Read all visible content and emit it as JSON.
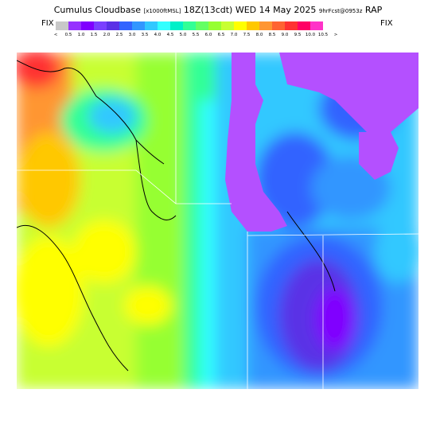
{
  "header": {
    "title": "Cumulus Cloudbase",
    "units": "[x1000ftMSL]",
    "valid": "18Z(13cdt) WED 14 May 2025",
    "run": "9hrFcst@0953z",
    "model": "RAP"
  },
  "legend": {
    "fix_left": "FIX",
    "fix_right": "FIX",
    "colors": [
      "#c8c8c8",
      "#9632ff",
      "#8000ff",
      "#7a40ff",
      "#5a32e6",
      "#3264ff",
      "#3296ff",
      "#32c8ff",
      "#32ffff",
      "#00f0c8",
      "#32ff96",
      "#64ff64",
      "#96ff32",
      "#c8ff32",
      "#ffff00",
      "#ffc800",
      "#ff9632",
      "#ff6432",
      "#ff3232",
      "#ff0064",
      "#ff32c8"
    ],
    "labels": [
      "<",
      "0.5",
      "1.0",
      "1.5",
      "2.0",
      "2.5",
      "3.0",
      "3.5",
      "4.0",
      "4.5",
      "5.0",
      "5.5",
      "6.0",
      "6.5",
      "7.0",
      "7.5",
      "8.0",
      "8.5",
      "9.0",
      "9.5",
      "10.0",
      "10.5",
      ">"
    ]
  }
}
